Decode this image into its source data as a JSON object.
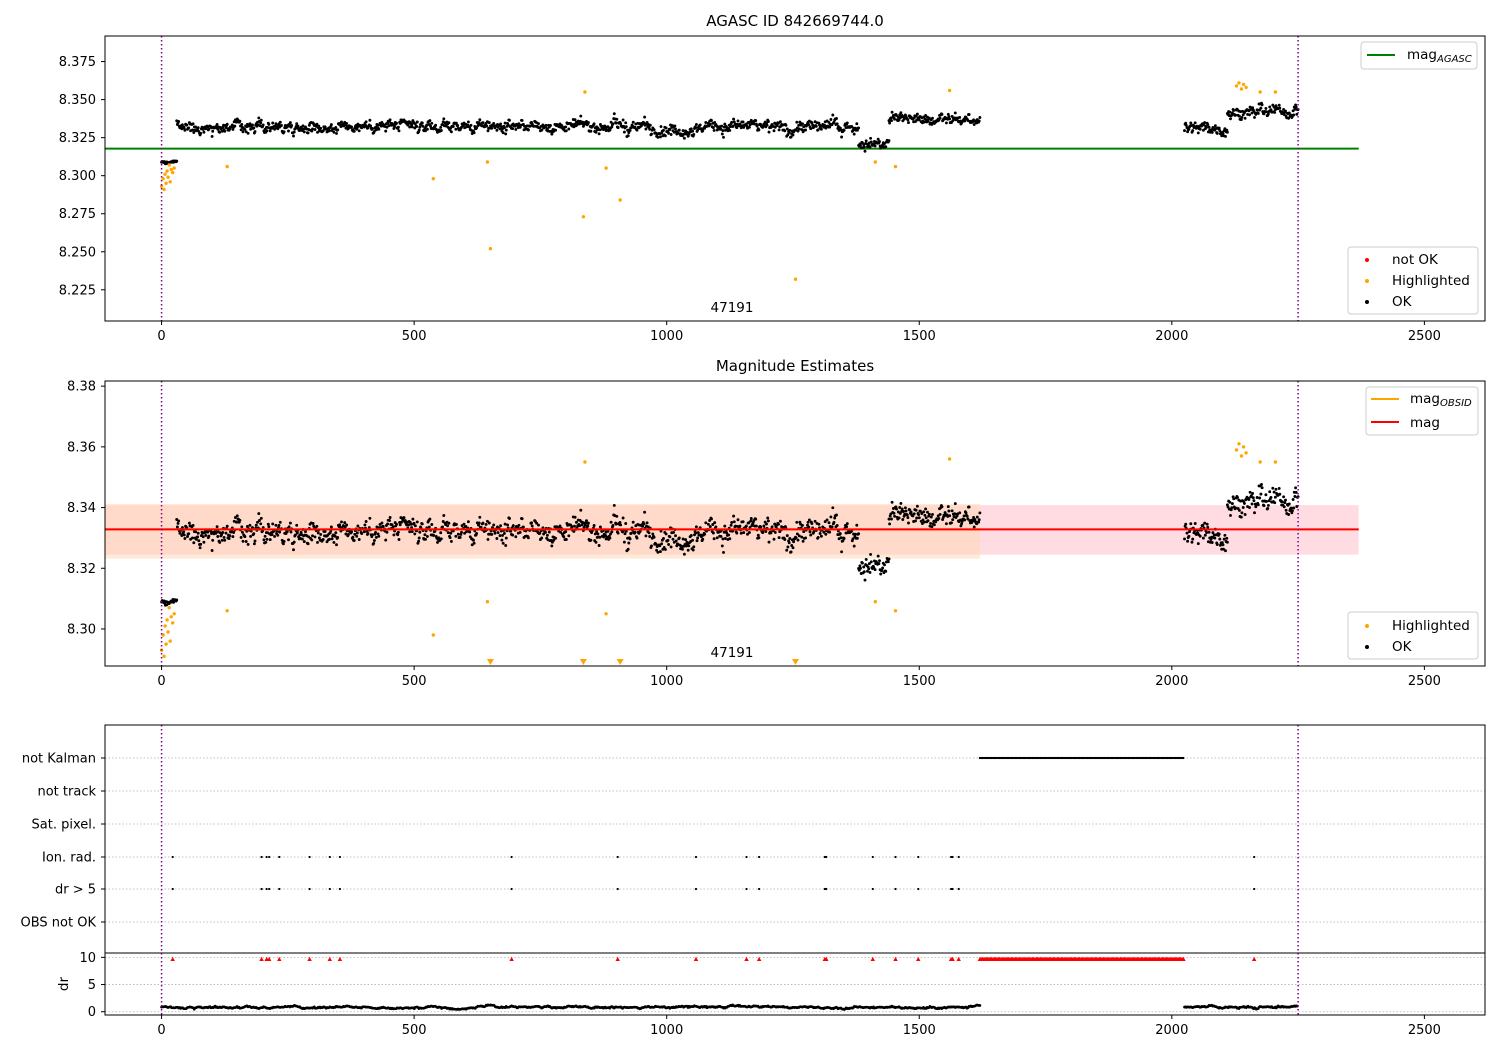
{
  "chart_data": [
    {
      "type": "scatter",
      "title": "AGASC ID 842669744.0",
      "annotation": "47191",
      "xlim": [
        -112,
        2620
      ],
      "ylim": [
        8.2045,
        8.3918
      ],
      "xticks": [
        0,
        500,
        1000,
        1500,
        2000,
        2500
      ],
      "yticks": [
        8.225,
        8.25,
        8.275,
        8.3,
        8.325,
        8.35,
        8.375
      ],
      "ytick_labels": [
        "8.225",
        "8.250",
        "8.275",
        "8.300",
        "8.325",
        "8.350",
        "8.375"
      ],
      "vlines": [
        0,
        2250
      ],
      "lines": [
        {
          "name": "mag_AGASC",
          "label_main": "mag",
          "label_sub": "AGASC",
          "y": 8.3178,
          "x": [
            -112,
            2370
          ],
          "color": "#008000"
        }
      ],
      "legend_lines": {
        "position": "upper right"
      },
      "legend_points": {
        "position": "lower right",
        "entries": [
          {
            "label": "not OK",
            "color": "#ff0000"
          },
          {
            "label": "Highlighted",
            "color": "#ffa500"
          },
          {
            "label": "OK",
            "color": "#000000"
          }
        ]
      },
      "ok_segments": [
        {
          "x": [
            0,
            30
          ],
          "base": 8.309,
          "amp": 0.0025
        },
        {
          "x": [
            30,
            880
          ],
          "base": 8.3325,
          "amp": 0.0075
        },
        {
          "x": [
            880,
            1380
          ],
          "base": 8.332,
          "amp": 0.0085
        },
        {
          "x": [
            1380,
            1440
          ],
          "base": 8.321,
          "amp": 0.007
        },
        {
          "x": [
            1440,
            1620
          ],
          "base": 8.337,
          "amp": 0.0075
        },
        {
          "x": [
            2025,
            2110
          ],
          "base": 8.331,
          "amp": 0.0075
        },
        {
          "x": [
            2110,
            2250
          ],
          "base": 8.342,
          "amp": 0.0085
        }
      ],
      "highlighted_points": [
        {
          "x": 0,
          "y": 8.293
        },
        {
          "x": 3,
          "y": 8.298
        },
        {
          "x": 5,
          "y": 8.291
        },
        {
          "x": 7,
          "y": 8.301
        },
        {
          "x": 9,
          "y": 8.295
        },
        {
          "x": 11,
          "y": 8.303
        },
        {
          "x": 13,
          "y": 8.299
        },
        {
          "x": 15,
          "y": 8.307
        },
        {
          "x": 17,
          "y": 8.296
        },
        {
          "x": 19,
          "y": 8.304
        },
        {
          "x": 22,
          "y": 8.302
        },
        {
          "x": 25,
          "y": 8.305
        },
        {
          "x": 130,
          "y": 8.306
        },
        {
          "x": 538,
          "y": 8.298
        },
        {
          "x": 645,
          "y": 8.309
        },
        {
          "x": 651,
          "y": 8.252
        },
        {
          "x": 835,
          "y": 8.273
        },
        {
          "x": 838,
          "y": 8.355
        },
        {
          "x": 880,
          "y": 8.305
        },
        {
          "x": 908,
          "y": 8.284
        },
        {
          "x": 1255,
          "y": 8.232
        },
        {
          "x": 1413,
          "y": 8.309
        },
        {
          "x": 1453,
          "y": 8.306
        },
        {
          "x": 1560,
          "y": 8.356
        },
        {
          "x": 2128,
          "y": 8.359
        },
        {
          "x": 2133,
          "y": 8.361
        },
        {
          "x": 2138,
          "y": 8.357
        },
        {
          "x": 2142,
          "y": 8.36
        },
        {
          "x": 2147,
          "y": 8.358
        },
        {
          "x": 2175,
          "y": 8.355
        },
        {
          "x": 2205,
          "y": 8.355
        }
      ]
    },
    {
      "type": "scatter",
      "title": "Magnitude Estimates",
      "annotation": "47191",
      "xlim": [
        -112,
        2620
      ],
      "ylim": [
        8.2878,
        8.3817
      ],
      "xticks": [
        0,
        500,
        1000,
        1500,
        2000,
        2500
      ],
      "yticks": [
        8.3,
        8.32,
        8.34,
        8.36,
        8.38
      ],
      "ytick_labels": [
        "8.30",
        "8.32",
        "8.34",
        "8.36",
        "8.38"
      ],
      "vlines": [
        0,
        2250
      ],
      "bands": [
        {
          "name": "mag band",
          "y": [
            8.3245,
            8.3408
          ],
          "x": [
            -112,
            2370
          ],
          "color": "#ffc0cb"
        },
        {
          "name": "mag_OBSID band",
          "y": [
            8.3232,
            8.3412
          ],
          "x": [
            -112,
            1620
          ],
          "color": "#ffd9b8"
        }
      ],
      "lines": [
        {
          "name": "mag_OBSID",
          "label_main": "mag",
          "label_sub": "OBSID",
          "y": 8.3328,
          "x": [
            -112,
            1620
          ],
          "color": "#ffa500"
        },
        {
          "name": "mag",
          "label_main": "mag",
          "label_sub": "",
          "y": 8.3328,
          "x": [
            -112,
            2370
          ],
          "color": "#ff0000"
        }
      ],
      "legend_lines": {
        "position": "upper right"
      },
      "legend_points": {
        "position": "lower right",
        "entries": [
          {
            "label": "Highlighted",
            "color": "#ffa500"
          },
          {
            "label": "OK",
            "color": "#000000"
          }
        ]
      },
      "ok_segments": [
        {
          "x": [
            0,
            30
          ],
          "base": 8.309,
          "amp": 0.0025
        },
        {
          "x": [
            30,
            880
          ],
          "base": 8.3325,
          "amp": 0.0075
        },
        {
          "x": [
            880,
            1380
          ],
          "base": 8.332,
          "amp": 0.0085
        },
        {
          "x": [
            1380,
            1440
          ],
          "base": 8.321,
          "amp": 0.007
        },
        {
          "x": [
            1440,
            1620
          ],
          "base": 8.337,
          "amp": 0.0075
        },
        {
          "x": [
            2025,
            2110
          ],
          "base": 8.331,
          "amp": 0.0075
        },
        {
          "x": [
            2110,
            2250
          ],
          "base": 8.342,
          "amp": 0.0085
        }
      ],
      "highlighted_points": [
        {
          "x": 0,
          "y": 8.293
        },
        {
          "x": 3,
          "y": 8.298
        },
        {
          "x": 5,
          "y": 8.291
        },
        {
          "x": 7,
          "y": 8.301
        },
        {
          "x": 9,
          "y": 8.295
        },
        {
          "x": 11,
          "y": 8.303
        },
        {
          "x": 13,
          "y": 8.299
        },
        {
          "x": 15,
          "y": 8.307
        },
        {
          "x": 17,
          "y": 8.296
        },
        {
          "x": 19,
          "y": 8.304
        },
        {
          "x": 22,
          "y": 8.302
        },
        {
          "x": 25,
          "y": 8.305
        },
        {
          "x": 130,
          "y": 8.306
        },
        {
          "x": 538,
          "y": 8.298
        },
        {
          "x": 645,
          "y": 8.309
        },
        {
          "x": 838,
          "y": 8.355
        },
        {
          "x": 880,
          "y": 8.305
        },
        {
          "x": 1413,
          "y": 8.309
        },
        {
          "x": 1453,
          "y": 8.306
        },
        {
          "x": 1560,
          "y": 8.356
        },
        {
          "x": 2128,
          "y": 8.359
        },
        {
          "x": 2133,
          "y": 8.361
        },
        {
          "x": 2138,
          "y": 8.357
        },
        {
          "x": 2142,
          "y": 8.36
        },
        {
          "x": 2147,
          "y": 8.358
        },
        {
          "x": 2175,
          "y": 8.355
        },
        {
          "x": 2205,
          "y": 8.355
        }
      ],
      "offscale_markers_x": [
        651,
        835,
        908,
        1255
      ]
    },
    {
      "type": "scatter",
      "title": "",
      "xlim": [
        -112,
        2620
      ],
      "xticks": [
        0,
        500,
        1000,
        1500,
        2000,
        2500
      ],
      "vlines": [
        0,
        2250
      ],
      "flag_rows": [
        "not Kalman",
        "not track",
        "Sat. pixel.",
        "Ion. rad.",
        "dr > 5",
        "OBS not OK"
      ],
      "flags": {
        "not Kalman": {
          "ranges": [
            [
              1620,
              2025
            ]
          ]
        },
        "Ion. rad.": {
          "x": [
            22,
            198,
            208,
            213,
            233,
            293,
            333,
            353,
            693,
            903,
            1058,
            1158,
            1183,
            1313,
            1316,
            1408,
            1453,
            1498,
            1563,
            1566,
            1578,
            2163
          ]
        },
        "dr > 5": {
          "x": [
            22,
            198,
            208,
            213,
            233,
            293,
            333,
            353,
            693,
            903,
            1058,
            1158,
            1183,
            1313,
            1316,
            1408,
            1453,
            1498,
            1563,
            1566,
            1578,
            2163
          ]
        }
      },
      "dr_panel": {
        "ylabel": "dr",
        "ylim": [
          -0.6,
          10.8
        ],
        "yticks": [
          0,
          5,
          10
        ],
        "dr_segments": [
          [
            0,
            1620
          ],
          [
            2025,
            2250
          ]
        ],
        "dr_base": 0.8,
        "dr_amp": 0.45,
        "red_marker_y": 9.7,
        "red_marker_x": [
          22,
          198,
          208,
          213,
          233,
          293,
          333,
          353,
          693,
          903,
          1058,
          1158,
          1183,
          1313,
          1316,
          1408,
          1453,
          1498,
          1563,
          1566,
          1578,
          2163
        ],
        "red_marker_ranges": [
          [
            1620,
            2025
          ]
        ]
      }
    }
  ]
}
